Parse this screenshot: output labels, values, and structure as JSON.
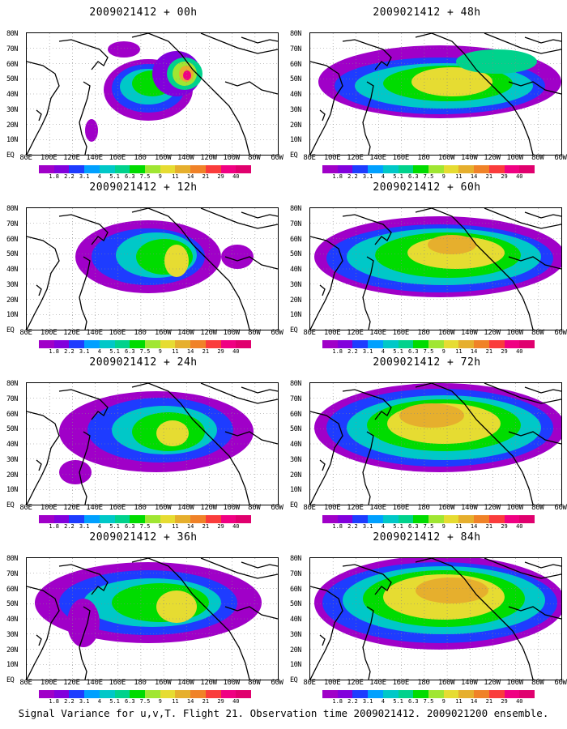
{
  "footer": "Signal Variance for u,v,T. Flight 21. Observation time 2009021412. 2009021200 ensemble.",
  "lat_labels": [
    "80N",
    "70N",
    "60N",
    "50N",
    "40N",
    "30N",
    "20N",
    "10N",
    "EQ"
  ],
  "lon_labels": [
    "80E",
    "100E",
    "120E",
    "140E",
    "160E",
    "180",
    "160W",
    "140W",
    "120W",
    "100W",
    "80W",
    "60W"
  ],
  "legend": {
    "levels": [
      "1.8",
      "2.2",
      "3.1",
      "4",
      "5.1",
      "6.3",
      "7.5",
      "9",
      "11",
      "14",
      "21",
      "29",
      "40"
    ],
    "colors": [
      "#a000c8",
      "#8200dc",
      "#1e3cff",
      "#00a0ff",
      "#00c8c8",
      "#00d28c",
      "#00dc00",
      "#a0e632",
      "#e6dc32",
      "#e6af2d",
      "#f08228",
      "#fa3c3c",
      "#f00082"
    ]
  },
  "chart_data": [
    {
      "type": "heatmap",
      "title": "2009021412 + 00h",
      "lead_hours": 0,
      "max_level": "40"
    },
    {
      "type": "heatmap",
      "title": "2009021412 + 48h",
      "lead_hours": 48,
      "max_level": "11"
    },
    {
      "type": "heatmap",
      "title": "2009021412 + 12h",
      "lead_hours": 12,
      "max_level": "9"
    },
    {
      "type": "heatmap",
      "title": "2009021412 + 60h",
      "lead_hours": 60,
      "max_level": "14"
    },
    {
      "type": "heatmap",
      "title": "2009021412 + 24h",
      "lead_hours": 24,
      "max_level": "9"
    },
    {
      "type": "heatmap",
      "title": "2009021412 + 72h",
      "lead_hours": 72,
      "max_level": "14"
    },
    {
      "type": "heatmap",
      "title": "2009021412 + 36h",
      "lead_hours": 36,
      "max_level": "11"
    },
    {
      "type": "heatmap",
      "title": "2009021412 + 84h",
      "lead_hours": 84,
      "max_level": "14"
    }
  ]
}
